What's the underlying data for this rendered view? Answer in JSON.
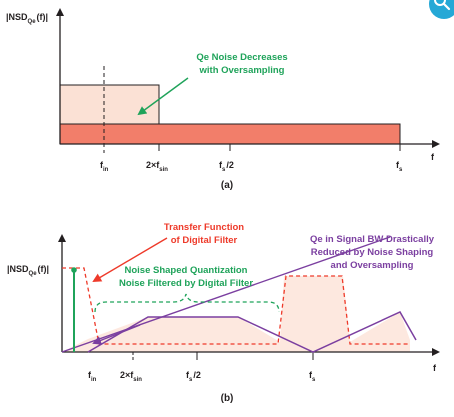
{
  "colors": {
    "axis": "#231f20",
    "noise_light": "#fbe1d5",
    "noise_dark": "#f27e6a",
    "green": "#1fa35a",
    "red": "#ee3a2a",
    "purple": "#7b3fa0",
    "teal_icon": "#25a8d6",
    "shaded": "#fde8df"
  },
  "icons": {
    "search": "search-icon"
  },
  "panel_a": {
    "y_label": {
      "main": "|NSD",
      "sub": "Qe",
      "tail": "(f)|"
    },
    "x_label": "f",
    "ticks": {
      "fin": {
        "main": "f",
        "sub": "in"
      },
      "two_fsin": {
        "main": "2×f",
        "sub": "sin"
      },
      "fs_half": {
        "main": "f",
        "sub": "s",
        "tail": "/2"
      },
      "fs": {
        "main": "f",
        "sub": "s"
      }
    },
    "annotation_lines": [
      "Qe Noise Decreases",
      "with Oversampling"
    ],
    "caption": "(a)"
  },
  "panel_b": {
    "y_label": {
      "main": "|NSD",
      "sub": "Qe",
      "tail": "(f)|"
    },
    "x_label": "f",
    "ticks": {
      "fin": {
        "main": "f",
        "sub": "in"
      },
      "two_fsin": {
        "main": "2×f",
        "sub": "sin"
      },
      "fs_half": {
        "main": "f",
        "sub": "s",
        "tail": "/2"
      },
      "fs": {
        "main": "f",
        "sub": "s"
      }
    },
    "transfer_lines": [
      "Transfer Function",
      "of Digital Filter"
    ],
    "noise_shaped_lines": [
      "Noise Shaped Quantization",
      "Noise Filtered by Digital Filter"
    ],
    "qe_bw_lines": [
      "Qe in Signal BW Drastically",
      "Reduced by Noise Shaping",
      "and Oversampling"
    ],
    "caption": "(b)"
  }
}
